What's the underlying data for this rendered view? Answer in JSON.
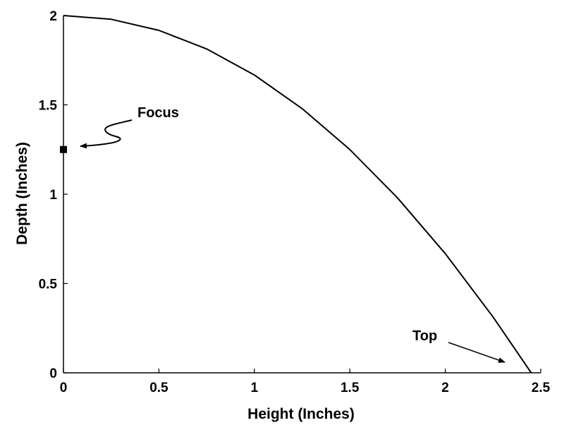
{
  "chart_data": {
    "type": "line",
    "title": "",
    "xlabel": "Height (Inches)",
    "ylabel": "Depth (Inches)",
    "xlim": [
      0,
      2.5
    ],
    "ylim": [
      0,
      2
    ],
    "x_ticks": [
      0,
      0.5,
      1,
      1.5,
      2,
      2.5
    ],
    "x_tick_labels": [
      "0",
      "0.5",
      "1",
      "1.5",
      "2",
      "2.5"
    ],
    "y_ticks": [
      0,
      0.5,
      1,
      1.5,
      2
    ],
    "y_tick_labels": [
      "0",
      "0.5",
      "1",
      "1.5",
      "2"
    ],
    "grid": false,
    "series": [
      {
        "x": [
          0,
          0.25,
          0.5,
          0.75,
          1.0,
          1.25,
          1.5,
          1.75,
          2.0,
          2.25,
          2.45
        ],
        "y": [
          2.0,
          1.979,
          1.917,
          1.813,
          1.667,
          1.479,
          1.25,
          0.979,
          0.667,
          0.313,
          0.0
        ]
      }
    ],
    "points": [
      {
        "label": "Focus",
        "x": 0,
        "y": 1.25,
        "marker": "square"
      }
    ],
    "annotations": [
      {
        "text": "Focus",
        "target": "focus-point"
      },
      {
        "text": "Top",
        "target": "curve-end"
      }
    ],
    "colors": {
      "line": "#000000",
      "axis": "#000000",
      "background": "#ffffff"
    }
  }
}
